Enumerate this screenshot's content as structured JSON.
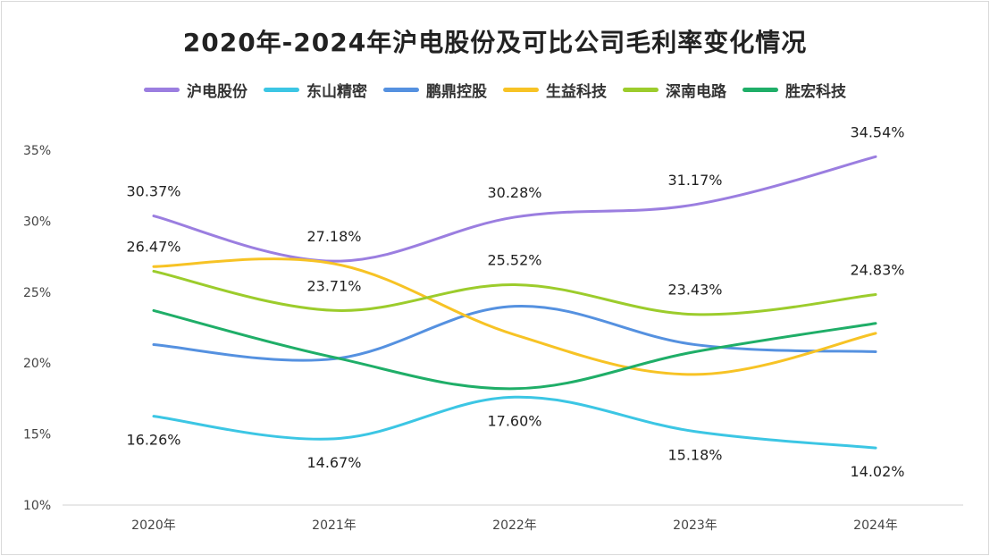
{
  "chart_data": {
    "type": "line",
    "title": "2020年-2024年沪电股份及可比公司毛利率变化情况",
    "categories": [
      "2020年",
      "2021年",
      "2022年",
      "2023年",
      "2024年"
    ],
    "ylim": [
      10,
      35
    ],
    "yticks": [
      "10%",
      "15%",
      "20%",
      "25%",
      "30%",
      "35%"
    ],
    "ytick_values": [
      10,
      15,
      20,
      25,
      30,
      35
    ],
    "legend_position": "top",
    "grid": false,
    "series": [
      {
        "name": "沪电股份",
        "color": "#9b7ee0",
        "values": [
          30.37,
          27.18,
          30.28,
          31.17,
          34.54
        ],
        "labels": [
          "30.37%",
          "27.18%",
          "30.28%",
          "31.17%",
          "34.54%"
        ]
      },
      {
        "name": "东山精密",
        "color": "#3cc6e4",
        "values": [
          16.26,
          14.67,
          17.6,
          15.18,
          14.02
        ],
        "labels": [
          "16.26%",
          "14.67%",
          "17.60%",
          "15.18%",
          "14.02%"
        ]
      },
      {
        "name": "鹏鼎控股",
        "color": "#5591e0",
        "values": [
          21.3,
          20.3,
          24.0,
          21.3,
          20.8
        ],
        "labels": []
      },
      {
        "name": "生益科技",
        "color": "#f7c325",
        "values": [
          26.8,
          27.0,
          22.0,
          19.2,
          22.1
        ],
        "labels": []
      },
      {
        "name": "深南电路",
        "color": "#9ccc2c",
        "values": [
          26.47,
          23.71,
          25.52,
          23.43,
          24.83
        ],
        "labels": [
          "26.47%",
          "23.71%",
          "25.52%",
          "23.43%",
          "24.83%"
        ]
      },
      {
        "name": "胜宏科技",
        "color": "#1fae68",
        "values": [
          23.7,
          20.4,
          18.2,
          20.8,
          22.8
        ],
        "labels": []
      }
    ]
  }
}
